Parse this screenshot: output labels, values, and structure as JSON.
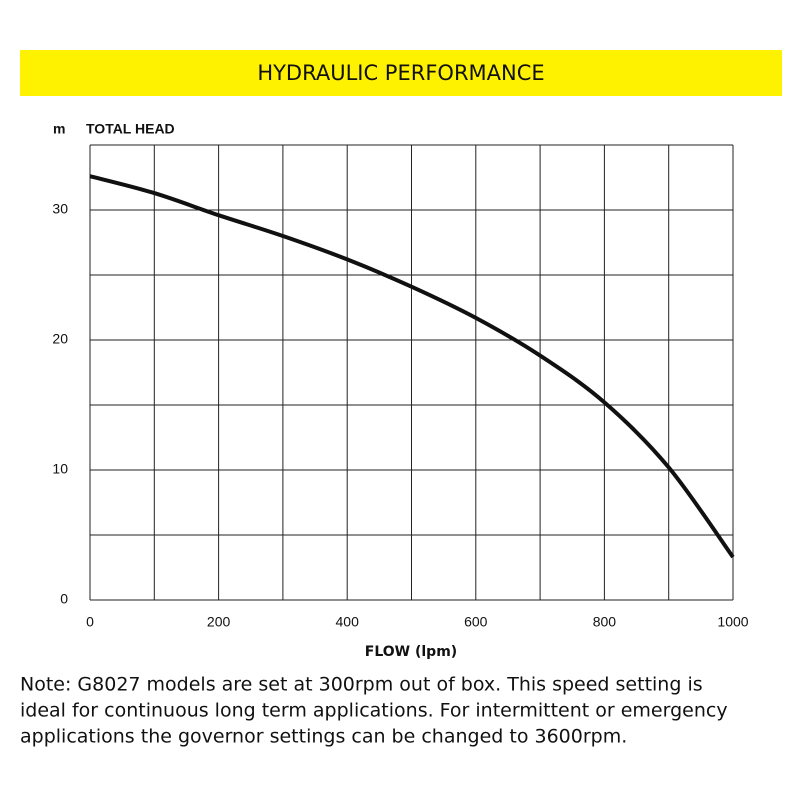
{
  "chart_data": {
    "type": "line",
    "title": "HYDRAULIC PERFORMANCE",
    "y_unit": "m",
    "y_label": "TOTAL HEAD",
    "x_label": "FLOW (lpm)",
    "x": [
      0,
      100,
      200,
      300,
      400,
      500,
      600,
      700,
      800,
      900,
      1000
    ],
    "series": [
      {
        "name": "Total head",
        "color": "#111111",
        "values": [
          32.6,
          31.3,
          29.6,
          28.0,
          26.2,
          24.1,
          21.7,
          18.8,
          15.2,
          10.2,
          3.3
        ]
      }
    ],
    "xlim": [
      0,
      1000
    ],
    "xticks": [
      0,
      200,
      400,
      600,
      800,
      1000
    ],
    "ylim": [
      0,
      35
    ],
    "yticks": [
      0,
      10,
      20,
      30
    ],
    "xgrid": [
      0,
      100,
      200,
      300,
      400,
      500,
      600,
      700,
      800,
      900,
      1000
    ],
    "ygrid": [
      0,
      5,
      10,
      15,
      20,
      25,
      30,
      35
    ],
    "banner_color": "#fff200",
    "note": [
      "Note: G8027 models are set at 300rpm out of box. This speed setting is",
      "ideal for continuous long term applications. For intermittent or emergency",
      "applications the governor settings can be changed to 3600rpm."
    ]
  }
}
